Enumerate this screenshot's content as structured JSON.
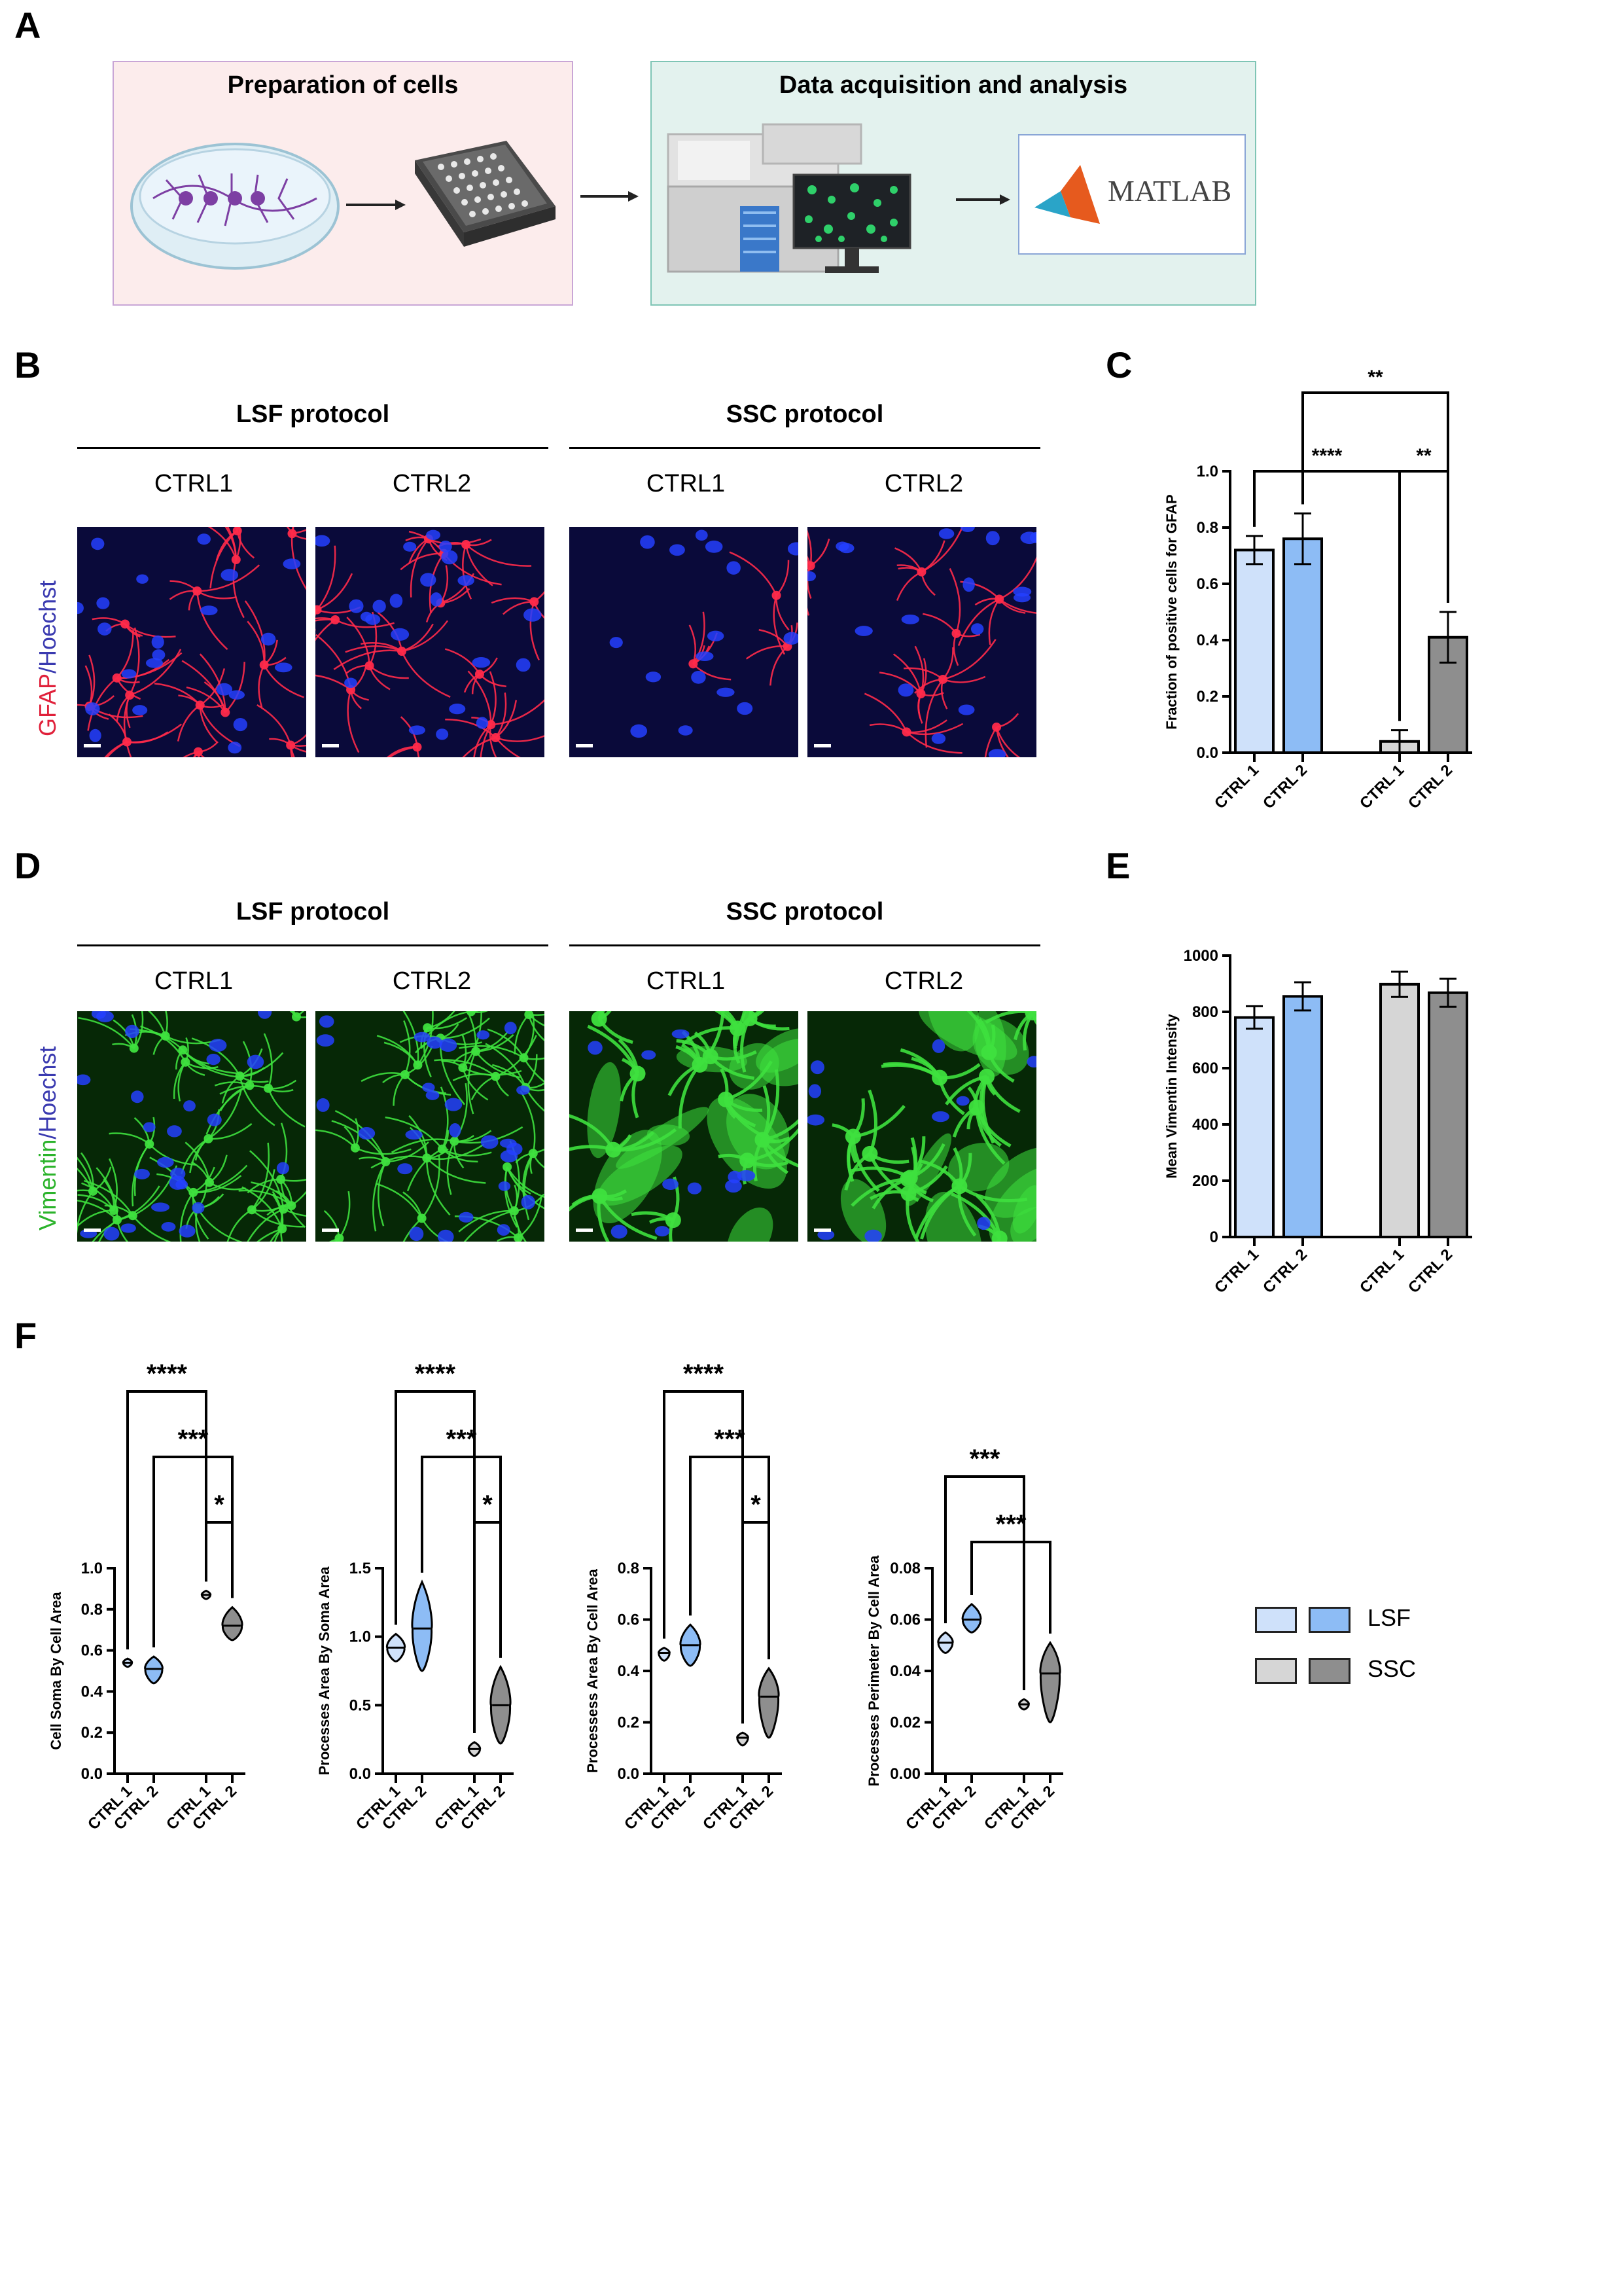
{
  "panels": {
    "A": {
      "letter": "A",
      "box1_title": "Preparation of cells",
      "box2_title": "Data acquisition and analysis",
      "software_label": "MATLAB",
      "colors": {
        "box1_bg": "#fcecec",
        "box1_border": "#c9a6d6",
        "box2_bg": "#e3f2ee",
        "box2_border": "#7fc5b5",
        "matlab_border": "#8aa6d6"
      }
    },
    "B": {
      "letter": "B",
      "protocols": [
        "LSF protocol",
        "SSC protocol"
      ],
      "columns": [
        "CTRL1",
        "CTRL2",
        "CTRL1",
        "CTRL2"
      ],
      "stain_marker": "GFAP",
      "stain_sep": "/",
      "stain_nuclear": "Hoechst",
      "colors": {
        "marker": "#e0203a",
        "nuclear": "#3a3ab0"
      }
    },
    "C": {
      "letter": "C"
    },
    "D": {
      "letter": "D",
      "protocols": [
        "LSF protocol",
        "SSC protocol"
      ],
      "columns": [
        "CTRL1",
        "CTRL2",
        "CTRL1",
        "CTRL2"
      ],
      "stain_marker": "Vimentin",
      "stain_sep": "/",
      "stain_nuclear": "Hoechst",
      "colors": {
        "marker": "#2bb32b",
        "nuclear": "#3a3ab0"
      }
    },
    "E": {
      "letter": "E"
    },
    "F": {
      "letter": "F"
    }
  },
  "legend": {
    "items": [
      {
        "label": "LSF",
        "colors": [
          "#cfe1fa",
          "#8dbcf5"
        ]
      },
      {
        "label": "SSC",
        "colors": [
          "#d6d6d6",
          "#8e8e8e"
        ]
      }
    ]
  },
  "chart_data": [
    {
      "id": "C",
      "type": "bar",
      "ylabel": "Fraction of positive cells for GFAP",
      "ylim": [
        0,
        1.0
      ],
      "yticks": [
        "0.0",
        "0.2",
        "0.4",
        "0.6",
        "0.8",
        "1.0"
      ],
      "categories": [
        "CTRL 1",
        "CTRL 2",
        "CTRL 1",
        "CTRL 2"
      ],
      "values": [
        0.72,
        0.76,
        0.04,
        0.41
      ],
      "errors": [
        0.05,
        0.09,
        0.04,
        0.09
      ],
      "colors": [
        "#cfe1fa",
        "#8dbcf5",
        "#d6d6d6",
        "#8e8e8e"
      ],
      "significance": [
        {
          "from": 0,
          "to": 2,
          "label": "****"
        },
        {
          "from": 2,
          "to": 3,
          "label": "**"
        },
        {
          "from": 1,
          "to": 3,
          "label": "**"
        }
      ]
    },
    {
      "id": "E",
      "type": "bar",
      "ylabel": "Mean Vimentin Intensity",
      "ylim": [
        0,
        1000
      ],
      "yticks": [
        "0",
        "200",
        "400",
        "600",
        "800",
        "1000"
      ],
      "categories": [
        "CTRL 1",
        "CTRL 2",
        "CTRL 1",
        "CTRL 2"
      ],
      "values": [
        780,
        855,
        898,
        868
      ],
      "errors": [
        40,
        50,
        45,
        50
      ],
      "colors": [
        "#cfe1fa",
        "#8dbcf5",
        "#d6d6d6",
        "#8e8e8e"
      ],
      "significance": []
    },
    {
      "id": "F1",
      "type": "violin",
      "ylabel": "Cell Soma By Cell Area",
      "ylim": [
        0,
        1.0
      ],
      "yticks": [
        "0.0",
        "0.2",
        "0.4",
        "0.6",
        "0.8",
        "1.0"
      ],
      "categories": [
        "CTRL 1",
        "CTRL 2",
        "CTRL 1",
        "CTRL 2"
      ],
      "medians": [
        0.54,
        0.51,
        0.87,
        0.72
      ],
      "ranges": [
        [
          0.52,
          0.56
        ],
        [
          0.44,
          0.57
        ],
        [
          0.85,
          0.89
        ],
        [
          0.65,
          0.81
        ]
      ],
      "colors": [
        "#cfe1fa",
        "#8dbcf5",
        "#d6d6d6",
        "#8e8e8e"
      ],
      "significance": [
        {
          "from": 0,
          "to": 2,
          "label": "****"
        },
        {
          "from": 1,
          "to": 3,
          "label": "***"
        },
        {
          "from": 2,
          "to": 3,
          "label": "*"
        }
      ]
    },
    {
      "id": "F2",
      "type": "violin",
      "ylabel": "Processes Area By Soma Area",
      "ylim": [
        0,
        1.5
      ],
      "yticks": [
        "0.0",
        "0.5",
        "1.0",
        "1.5"
      ],
      "categories": [
        "CTRL 1",
        "CTRL 2",
        "CTRL 1",
        "CTRL 2"
      ],
      "medians": [
        0.92,
        1.06,
        0.18,
        0.5
      ],
      "ranges": [
        [
          0.82,
          1.02
        ],
        [
          0.75,
          1.4
        ],
        [
          0.13,
          0.23
        ],
        [
          0.22,
          0.78
        ]
      ],
      "colors": [
        "#cfe1fa",
        "#8dbcf5",
        "#d6d6d6",
        "#8e8e8e"
      ],
      "significance": [
        {
          "from": 0,
          "to": 2,
          "label": "****"
        },
        {
          "from": 1,
          "to": 3,
          "label": "***"
        },
        {
          "from": 2,
          "to": 3,
          "label": "*"
        }
      ]
    },
    {
      "id": "F3",
      "type": "violin",
      "ylabel": "Processess Area By Cell Area",
      "ylim": [
        0,
        0.8
      ],
      "yticks": [
        "0.0",
        "0.2",
        "0.4",
        "0.6",
        "0.8"
      ],
      "categories": [
        "CTRL 1",
        "CTRL 2",
        "CTRL 1",
        "CTRL 2"
      ],
      "medians": [
        0.47,
        0.5,
        0.14,
        0.3
      ],
      "ranges": [
        [
          0.44,
          0.49
        ],
        [
          0.42,
          0.58
        ],
        [
          0.11,
          0.16
        ],
        [
          0.14,
          0.41
        ]
      ],
      "colors": [
        "#cfe1fa",
        "#8dbcf5",
        "#d6d6d6",
        "#8e8e8e"
      ],
      "significance": [
        {
          "from": 0,
          "to": 2,
          "label": "****"
        },
        {
          "from": 1,
          "to": 3,
          "label": "***"
        },
        {
          "from": 2,
          "to": 3,
          "label": "*"
        }
      ]
    },
    {
      "id": "F4",
      "type": "violin",
      "ylabel": "Processes Perimeter By Cell Area",
      "ylim": [
        0,
        0.08
      ],
      "yticks": [
        "0.00",
        "0.02",
        "0.04",
        "0.06",
        "0.08"
      ],
      "categories": [
        "CTRL 1",
        "CTRL 2",
        "CTRL 1",
        "CTRL 2"
      ],
      "medians": [
        0.051,
        0.06,
        0.027,
        0.039
      ],
      "ranges": [
        [
          0.047,
          0.055
        ],
        [
          0.055,
          0.066
        ],
        [
          0.025,
          0.029
        ],
        [
          0.02,
          0.051
        ]
      ],
      "colors": [
        "#cfe1fa",
        "#8dbcf5",
        "#d6d6d6",
        "#8e8e8e"
      ],
      "significance": [
        {
          "from": 0,
          "to": 2,
          "label": "***"
        },
        {
          "from": 1,
          "to": 3,
          "label": "***"
        }
      ]
    }
  ]
}
